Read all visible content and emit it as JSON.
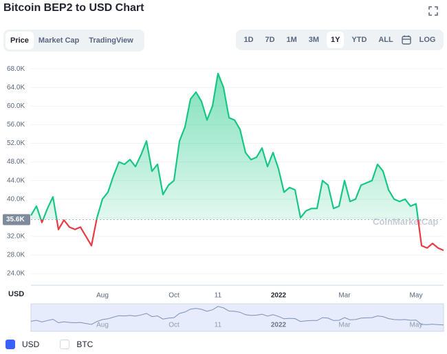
{
  "title": "Bitcoin BEP2 to USD Chart",
  "tabs": [
    "Price",
    "Market Cap",
    "TradingView"
  ],
  "ranges": [
    "1D",
    "7D",
    "1M",
    "3M",
    "1Y",
    "YTD",
    "ALL"
  ],
  "log_label": "LOG",
  "currencies": [
    "USD",
    "BTC"
  ],
  "chart_data": {
    "type": "line",
    "categories": [
      null,
      null,
      null,
      null,
      null,
      null,
      null,
      null,
      null,
      null,
      null,
      null,
      null,
      "Aug",
      null,
      null,
      null,
      null,
      null,
      null,
      null,
      null,
      null,
      null,
      null,
      null,
      "Oct",
      null,
      null,
      null,
      null,
      null,
      null,
      null,
      "11",
      null,
      null,
      null,
      null,
      null,
      null,
      null,
      null,
      null,
      null,
      "2022",
      null,
      null,
      null,
      null,
      null,
      null,
      null,
      null,
      null,
      null,
      null,
      "Mar",
      null,
      null,
      null,
      null,
      null,
      null,
      null,
      null,
      null,
      null,
      null,
      null,
      "May",
      null,
      null,
      null,
      null,
      null
    ],
    "series": [
      {
        "name": "USD",
        "color": "#16c784",
        "values": [
          36500,
          38500,
          35000,
          38000,
          40500,
          33500,
          35500,
          34000,
          33500,
          34000,
          32000,
          30000,
          36000,
          40000,
          41500,
          45000,
          48000,
          47500,
          48500,
          47000,
          49500,
          52500,
          46000,
          47500,
          41000,
          43000,
          44000,
          52500,
          55500,
          61500,
          63000,
          61000,
          57000,
          60000,
          67000,
          64000,
          57500,
          57000,
          55000,
          50000,
          48500,
          49000,
          51000,
          47000,
          50000,
          46500,
          41500,
          42500,
          42000,
          36000,
          37500,
          38000,
          38000,
          44000,
          43000,
          38000,
          38500,
          44000,
          39500,
          40000,
          43000,
          43500,
          44000,
          47500,
          46000,
          42000,
          40000,
          39500,
          40000,
          38500,
          39000,
          30000,
          29500,
          30500,
          29500,
          29000
        ]
      }
    ],
    "below_color": "#ea3943",
    "ylim": [
      21500,
      69500
    ],
    "yticks": [
      {
        "value": 24000,
        "label": "24.0K"
      },
      {
        "value": 28000,
        "label": "28.0K"
      },
      {
        "value": 32000,
        "label": "32.0K"
      },
      {
        "value": 36000,
        "label": "36.0K"
      },
      {
        "value": 40000,
        "label": "40.0K"
      },
      {
        "value": 44000,
        "label": "44.0K"
      },
      {
        "value": 48000,
        "label": "48.0K"
      },
      {
        "value": 52000,
        "label": "52.0K"
      },
      {
        "value": 56000,
        "label": "56.0K"
      },
      {
        "value": 60000,
        "label": "60.0K"
      },
      {
        "value": 64000,
        "label": "64.0K"
      },
      {
        "value": 68000,
        "label": "68.0K"
      }
    ],
    "baseline": {
      "value": 35600,
      "label": "35.6K"
    },
    "y_axis_label": "USD",
    "watermark": "CoinMarketCap",
    "grid": true
  }
}
